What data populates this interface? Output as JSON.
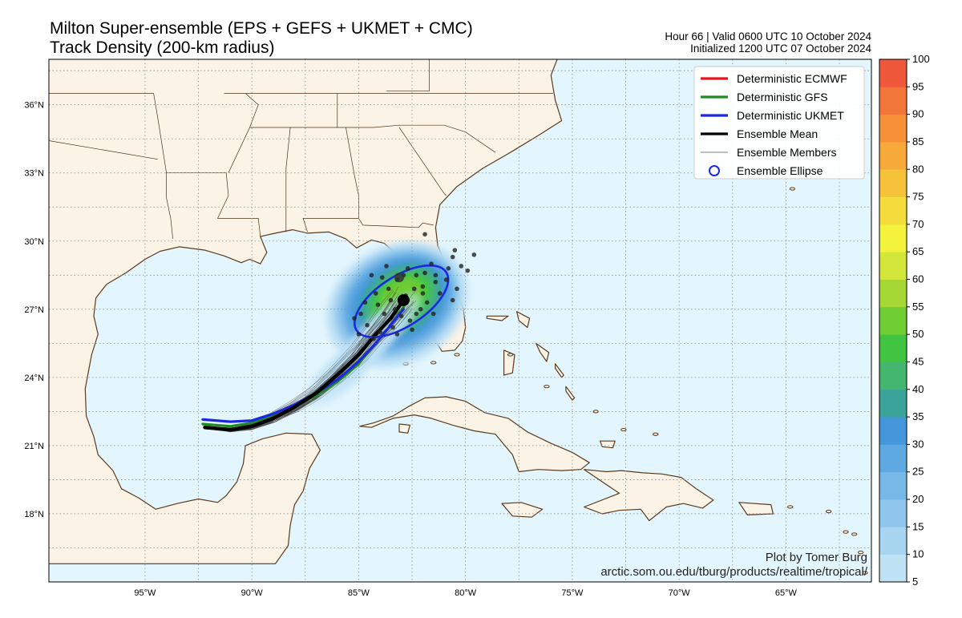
{
  "title": {
    "line1": "Milton Super-ensemble (EPS + GEFS + UKMET + CMC)",
    "line2": "Track Density (200-km radius)"
  },
  "subtitle": {
    "line1": "Hour 66 | Valid 0600 UTC 10 October 2024",
    "line2": "Initialized 1200 UTC 07 October 2024"
  },
  "credit": {
    "line1": "Plot by Tomer Burg",
    "line2": "arctic.som.ou.edu/tburg/products/realtime/tropical/"
  },
  "map": {
    "lon_range": [
      -99.5,
      -61
    ],
    "lat_range": [
      15,
      38
    ],
    "lat_ticks": [
      {
        "value": 18,
        "label": "18°N"
      },
      {
        "value": 21,
        "label": "21°N"
      },
      {
        "value": 24,
        "label": "24°N"
      },
      {
        "value": 27,
        "label": "27°N"
      },
      {
        "value": 30,
        "label": "30°N"
      },
      {
        "value": 33,
        "label": "33°N"
      },
      {
        "value": 36,
        "label": "36°N"
      }
    ],
    "lon_ticks": [
      {
        "value": -95,
        "label": "95°W"
      },
      {
        "value": -90,
        "label": "90°W"
      },
      {
        "value": -85,
        "label": "85°W"
      },
      {
        "value": -80,
        "label": "80°W"
      },
      {
        "value": -75,
        "label": "75°W"
      },
      {
        "value": -70,
        "label": "70°W"
      },
      {
        "value": -65,
        "label": "65°W"
      }
    ],
    "ocean_color": "#e4f6fd",
    "land_color": "#fbf3e6",
    "coast_color": "#5a3a1e",
    "grid_color": "#8a8a8a",
    "gridlines": true
  },
  "colorbar": {
    "ticks": [
      5,
      10,
      15,
      20,
      25,
      30,
      35,
      40,
      45,
      50,
      55,
      60,
      65,
      70,
      75,
      80,
      85,
      90,
      95,
      100
    ],
    "colors": [
      "#bfe2f5",
      "#a7d5f1",
      "#8fc7ec",
      "#77b8e6",
      "#5ea9e1",
      "#4597dc",
      "#3ba39a",
      "#44b670",
      "#41c540",
      "#70cc33",
      "#a5d834",
      "#d3e63a",
      "#f3f23d",
      "#f4dc3a",
      "#f6c23a",
      "#f7a93a",
      "#f6913a",
      "#f2763a",
      "#ef583a",
      "#e8363a"
    ]
  },
  "legend": {
    "location": "top-right",
    "items": [
      {
        "label": "Deterministic ECMWF",
        "color": "#e8141c",
        "style": "line-thick"
      },
      {
        "label": "Deterministic GFS",
        "color": "#1f8a1f",
        "style": "line-thick"
      },
      {
        "label": "Deterministic UKMET",
        "color": "#1b28e0",
        "style": "line-thick"
      },
      {
        "label": "Ensemble Mean",
        "color": "#000000",
        "style": "line-thick"
      },
      {
        "label": "Ensemble Members",
        "color": "#555555",
        "style": "line-thin"
      },
      {
        "label": "Ensemble Ellipse",
        "color": "#1b28e0",
        "style": "circle"
      }
    ]
  },
  "storm": {
    "ensemble_mean_track": [
      [
        -92.2,
        21.8
      ],
      [
        -91.0,
        21.7
      ],
      [
        -90.0,
        21.85
      ],
      [
        -89.0,
        22.2
      ],
      [
        -88.0,
        22.7
      ],
      [
        -87.0,
        23.3
      ],
      [
        -86.0,
        24.1
      ],
      [
        -85.0,
        25.0
      ],
      [
        -84.2,
        25.9
      ],
      [
        -83.5,
        26.6
      ],
      [
        -82.9,
        27.4
      ]
    ],
    "gfs_track": [
      [
        -92.3,
        21.95
      ],
      [
        -91.0,
        21.85
      ],
      [
        -90.0,
        22.0
      ],
      [
        -89.0,
        22.3
      ],
      [
        -88.0,
        22.7
      ],
      [
        -87.0,
        23.2
      ],
      [
        -86.0,
        23.8
      ],
      [
        -85.0,
        24.6
      ],
      [
        -84.2,
        25.5
      ],
      [
        -83.5,
        26.3
      ],
      [
        -82.9,
        27.1
      ]
    ],
    "ukmet_track": [
      [
        -92.3,
        22.15
      ],
      [
        -91.0,
        22.05
      ],
      [
        -90.0,
        22.1
      ],
      [
        -89.0,
        22.4
      ],
      [
        -88.0,
        22.8
      ],
      [
        -87.0,
        23.3
      ],
      [
        -86.0,
        23.9
      ],
      [
        -85.0,
        24.7
      ],
      [
        -84.2,
        25.5
      ],
      [
        -83.5,
        26.3
      ],
      [
        -82.9,
        27.0
      ]
    ],
    "mean_position": [
      -82.9,
      27.4
    ],
    "ellipse": {
      "center": [
        -83.0,
        27.35
      ],
      "width_deg": 5.0,
      "height_deg": 2.2,
      "rotation_deg": 33
    },
    "member_positions": [
      [
        -83.2,
        28.3
      ],
      [
        -82.7,
        28.8
      ],
      [
        -82.3,
        28.5
      ],
      [
        -81.9,
        28.6
      ],
      [
        -81.6,
        29.0
      ],
      [
        -81.4,
        28.2
      ],
      [
        -81.2,
        27.7
      ],
      [
        -81.8,
        27.3
      ],
      [
        -82.1,
        27.0
      ],
      [
        -82.6,
        26.5
      ],
      [
        -83.4,
        26.2
      ],
      [
        -84.0,
        26.0
      ],
      [
        -84.6,
        26.3
      ],
      [
        -84.9,
        26.8
      ],
      [
        -84.7,
        27.3
      ],
      [
        -84.2,
        27.7
      ],
      [
        -83.6,
        27.9
      ],
      [
        -83.9,
        28.4
      ],
      [
        -83.3,
        27.0
      ],
      [
        -82.8,
        27.6
      ],
      [
        -82.4,
        27.9
      ],
      [
        -82.0,
        28.0
      ],
      [
        -81.4,
        28.5
      ],
      [
        -80.9,
        28.3
      ],
      [
        -80.8,
        28.8
      ],
      [
        -80.6,
        29.3
      ],
      [
        -80.2,
        28.9
      ],
      [
        -80.4,
        27.9
      ],
      [
        -80.6,
        27.4
      ],
      [
        -79.9,
        28.7
      ],
      [
        -79.6,
        29.4
      ],
      [
        -80.5,
        29.6
      ],
      [
        -81.9,
        30.3
      ],
      [
        -82.9,
        28.5
      ],
      [
        -83.7,
        28.9
      ],
      [
        -84.4,
        28.5
      ],
      [
        -85.2,
        26.6
      ],
      [
        -85.0,
        25.9
      ],
      [
        -84.3,
        25.7
      ],
      [
        -83.2,
        25.9
      ],
      [
        -82.5,
        26.1
      ],
      [
        -81.5,
        26.8
      ],
      [
        -82.3,
        26.8
      ],
      [
        -83.0,
        26.7
      ],
      [
        -83.8,
        26.8
      ],
      [
        -84.1,
        27.2
      ],
      [
        -83.5,
        27.4
      ],
      [
        -82.0,
        27.7
      ]
    ],
    "large_marker": [
      -83.1,
      28.4
    ]
  }
}
